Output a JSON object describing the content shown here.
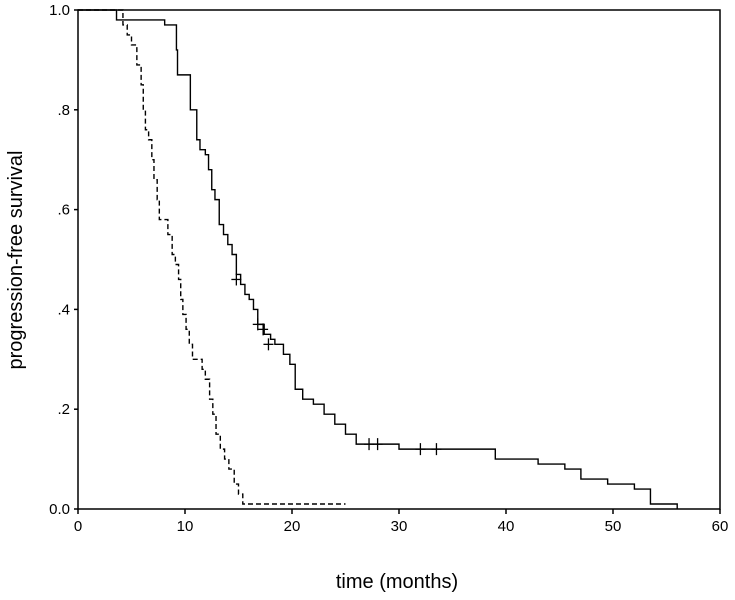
{
  "chart_data": {
    "type": "line",
    "title": "",
    "xlabel": "time (months)",
    "ylabel": "progression-free survival",
    "xlim": [
      0,
      60
    ],
    "ylim": [
      0,
      1
    ],
    "x_ticks": [
      0,
      10,
      20,
      30,
      40,
      50,
      60
    ],
    "x_tick_labels": [
      "0",
      "10",
      "20",
      "30",
      "40",
      "50",
      "60"
    ],
    "y_ticks": [
      0,
      0.2,
      0.4,
      0.6,
      0.8,
      1.0
    ],
    "y_tick_labels": [
      "0.0",
      ".2",
      ".4",
      ".6",
      ".8",
      "1.0"
    ],
    "grid": false,
    "series": [
      {
        "style": "solid",
        "color": "#000000",
        "steps": [
          [
            0,
            1.0
          ],
          [
            3.6,
            0.98
          ],
          [
            8.1,
            0.97
          ],
          [
            9.2,
            0.92
          ],
          [
            9.3,
            0.87
          ],
          [
            10.5,
            0.8
          ],
          [
            11.1,
            0.74
          ],
          [
            11.4,
            0.72
          ],
          [
            11.9,
            0.71
          ],
          [
            12.2,
            0.68
          ],
          [
            12.5,
            0.64
          ],
          [
            12.8,
            0.62
          ],
          [
            13.2,
            0.57
          ],
          [
            13.6,
            0.55
          ],
          [
            14.0,
            0.53
          ],
          [
            14.4,
            0.51
          ],
          [
            14.8,
            0.47
          ],
          [
            15.2,
            0.45
          ],
          [
            15.6,
            0.43
          ],
          [
            16.0,
            0.42
          ],
          [
            16.4,
            0.4
          ],
          [
            16.8,
            0.37
          ],
          [
            17.4,
            0.35
          ],
          [
            18.0,
            0.34
          ],
          [
            18.4,
            0.33
          ],
          [
            19.2,
            0.31
          ],
          [
            19.8,
            0.29
          ],
          [
            20.3,
            0.24
          ],
          [
            21.0,
            0.22
          ],
          [
            22.0,
            0.21
          ],
          [
            23.0,
            0.19
          ],
          [
            24.0,
            0.17
          ],
          [
            25.0,
            0.15
          ],
          [
            26.0,
            0.13
          ],
          [
            30.0,
            0.12
          ],
          [
            39.0,
            0.1
          ],
          [
            43.0,
            0.09
          ],
          [
            45.5,
            0.08
          ],
          [
            47.0,
            0.06
          ],
          [
            49.5,
            0.05
          ],
          [
            52.0,
            0.04
          ],
          [
            53.5,
            0.01
          ],
          [
            56.0,
            0.0
          ]
        ],
        "end_x": 56.0,
        "censored": [
          [
            14.8,
            0.46
          ],
          [
            16.8,
            0.37
          ],
          [
            17.3,
            0.36
          ],
          [
            17.8,
            0.33
          ],
          [
            27.2,
            0.13
          ],
          [
            28.0,
            0.13
          ],
          [
            32.0,
            0.12
          ],
          [
            33.5,
            0.12
          ]
        ]
      },
      {
        "style": "dashed",
        "color": "#000000",
        "steps": [
          [
            0,
            1.0
          ],
          [
            4.2,
            0.97
          ],
          [
            4.6,
            0.95
          ],
          [
            5.0,
            0.93
          ],
          [
            5.5,
            0.89
          ],
          [
            5.9,
            0.85
          ],
          [
            6.1,
            0.8
          ],
          [
            6.3,
            0.76
          ],
          [
            6.6,
            0.74
          ],
          [
            6.9,
            0.7
          ],
          [
            7.1,
            0.66
          ],
          [
            7.4,
            0.62
          ],
          [
            7.6,
            0.58
          ],
          [
            8.4,
            0.55
          ],
          [
            8.8,
            0.51
          ],
          [
            9.1,
            0.49
          ],
          [
            9.4,
            0.46
          ],
          [
            9.6,
            0.42
          ],
          [
            9.8,
            0.39
          ],
          [
            10.1,
            0.36
          ],
          [
            10.4,
            0.33
          ],
          [
            10.7,
            0.3
          ],
          [
            11.6,
            0.28
          ],
          [
            11.9,
            0.26
          ],
          [
            12.3,
            0.22
          ],
          [
            12.6,
            0.19
          ],
          [
            12.9,
            0.15
          ],
          [
            13.3,
            0.12
          ],
          [
            13.7,
            0.1
          ],
          [
            14.1,
            0.08
          ],
          [
            14.6,
            0.05
          ],
          [
            15.0,
            0.03
          ],
          [
            15.4,
            0.01
          ]
        ],
        "end_x": 25.0
      }
    ]
  }
}
